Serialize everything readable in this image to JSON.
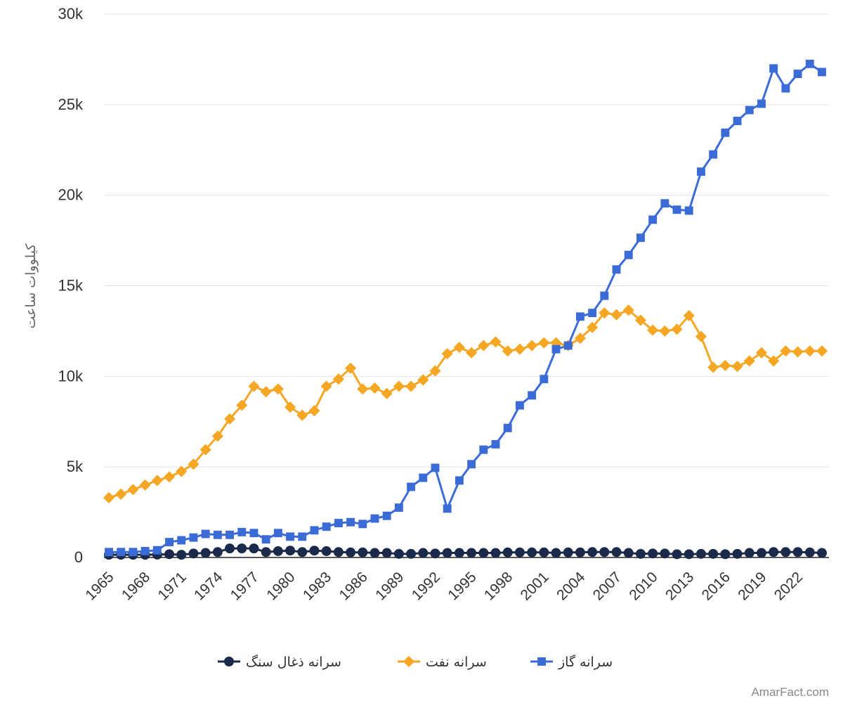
{
  "chart_data": {
    "type": "line",
    "ylabel": "کیلووات ساعت",
    "xlabel": "",
    "ylim": [
      0,
      30000
    ],
    "y_ticks": [
      "0",
      "5k",
      "10k",
      "15k",
      "20k",
      "25k",
      "30k"
    ],
    "x_tick_labels": [
      "1965",
      "1968",
      "1971",
      "1974",
      "1977",
      "1980",
      "1983",
      "1986",
      "1989",
      "1992",
      "1995",
      "1998",
      "2001",
      "2004",
      "2007",
      "2010",
      "2013",
      "2016",
      "2019",
      "2022"
    ],
    "grid": "horizontal",
    "legend_position": "bottom",
    "x": [
      1965,
      1966,
      1967,
      1968,
      1969,
      1970,
      1971,
      1972,
      1973,
      1974,
      1975,
      1976,
      1977,
      1978,
      1979,
      1980,
      1981,
      1982,
      1983,
      1984,
      1985,
      1986,
      1987,
      1988,
      1989,
      1990,
      1991,
      1992,
      1993,
      1994,
      1995,
      1996,
      1997,
      1998,
      1999,
      2000,
      2001,
      2002,
      2003,
      2004,
      2005,
      2006,
      2007,
      2008,
      2009,
      2010,
      2011,
      2012,
      2013,
      2014,
      2015,
      2016,
      2017,
      2018,
      2019,
      2020,
      2021,
      2022,
      2023,
      2024
    ],
    "series": [
      {
        "name": "سرانه ذغال سنگ",
        "color": "#1b2a4a",
        "marker": "circle",
        "values": [
          150,
          150,
          150,
          150,
          160,
          180,
          150,
          220,
          250,
          300,
          500,
          500,
          500,
          300,
          350,
          380,
          300,
          380,
          350,
          300,
          280,
          280,
          250,
          250,
          200,
          200,
          250,
          220,
          250,
          250,
          250,
          250,
          250,
          280,
          280,
          280,
          280,
          250,
          280,
          280,
          300,
          300,
          300,
          250,
          200,
          220,
          220,
          180,
          180,
          200,
          200,
          180,
          200,
          250,
          250,
          300,
          300,
          300,
          280,
          250
        ]
      },
      {
        "name": "سرانه نفت",
        "color": "#f5a623",
        "marker": "diamond",
        "values": [
          3300,
          3500,
          3750,
          4000,
          4250,
          4450,
          4750,
          5150,
          5950,
          6700,
          7650,
          8400,
          9450,
          9150,
          9300,
          8300,
          7850,
          8100,
          9450,
          9850,
          10450,
          9300,
          9350,
          9050,
          9450,
          9450,
          9800,
          10300,
          11250,
          11600,
          11300,
          11700,
          11900,
          11400,
          11500,
          11700,
          11850,
          11850,
          11700,
          12100,
          12700,
          13500,
          13400,
          13650,
          13100,
          12550,
          12500,
          12600,
          13350,
          12200,
          10500,
          10600,
          10550,
          10850,
          11300,
          10850,
          11400,
          11350,
          11400,
          11400
        ]
      },
      {
        "name": "سرانه گاز",
        "color": "#3b6bd6",
        "marker": "square",
        "values": [
          300,
          300,
          300,
          350,
          400,
          850,
          950,
          1100,
          1300,
          1250,
          1250,
          1400,
          1350,
          1000,
          1350,
          1150,
          1150,
          1500,
          1700,
          1900,
          1950,
          1850,
          2150,
          2300,
          2750,
          3900,
          4400,
          4950,
          2700,
          4250,
          5150,
          5950,
          6250,
          7150,
          8400,
          8950,
          9850,
          11500,
          11700,
          13300,
          13500,
          14450,
          15900,
          16700,
          17650,
          18650,
          19550,
          19200,
          19150,
          21300,
          22250,
          23450,
          24100,
          24700,
          25050,
          27000,
          25900,
          26700,
          27250,
          26800
        ]
      }
    ]
  },
  "watermark": "AmarFact.com"
}
